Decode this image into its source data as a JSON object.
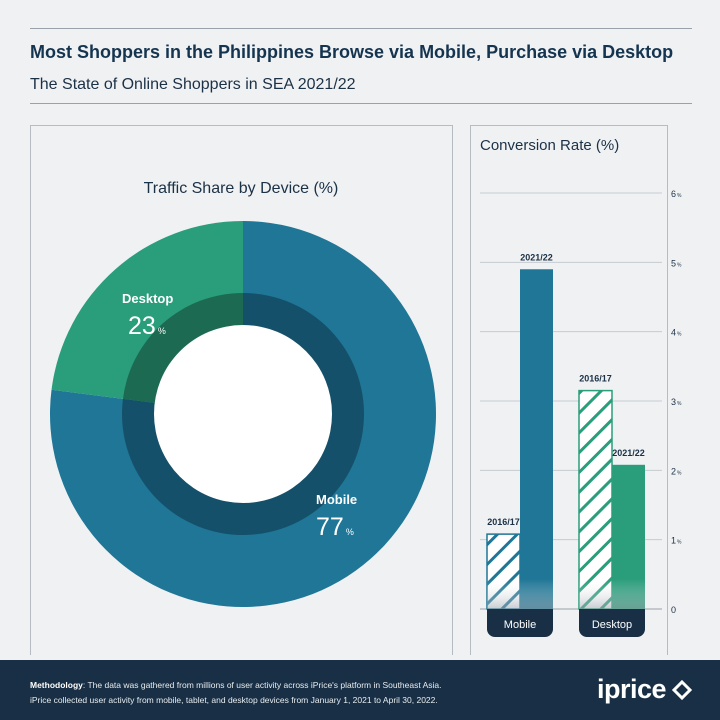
{
  "header": {
    "title": "Most Shoppers in the Philippines Browse via Mobile, Purchase via Desktop",
    "subtitle": "The State of Online Shoppers in SEA 2021/22"
  },
  "colors": {
    "mobile": "#1f7696",
    "desktop": "#2a9d7b",
    "navy": "#182f45",
    "inner_ring": "#15506a",
    "inner_ring_desktop": "#1c6a52"
  },
  "chart_data": [
    {
      "type": "pie",
      "title": "Traffic Share by Device (%)",
      "categories": [
        "Mobile",
        "Desktop"
      ],
      "values": [
        77,
        23
      ],
      "value_labels": [
        "77",
        "23"
      ],
      "unit": "%",
      "donut": true
    },
    {
      "type": "bar",
      "title": "Conversion Rate (%)",
      "categories": [
        "Mobile",
        "Desktop"
      ],
      "series": [
        {
          "name": "2016/17",
          "values": [
            1.08,
            3.15
          ],
          "pattern": "hatched"
        },
        {
          "name": "2021/22",
          "values": [
            4.9,
            2.08
          ],
          "pattern": "solid"
        }
      ],
      "ylim": [
        0,
        6
      ],
      "yticks": [
        {
          "value": 0,
          "label": "0",
          "unit": ""
        },
        {
          "value": 1,
          "label": "1",
          "unit": "%"
        },
        {
          "value": 2,
          "label": "2",
          "unit": "%"
        },
        {
          "value": 3,
          "label": "3",
          "unit": "%"
        },
        {
          "value": 4,
          "label": "4",
          "unit": "%"
        },
        {
          "value": 5,
          "label": "5",
          "unit": "%"
        },
        {
          "value": 6,
          "label": "6",
          "unit": "%"
        }
      ],
      "grid": true,
      "axis_position": "right"
    }
  ],
  "footer": {
    "methodology_label": "Methodology",
    "methodology_line1": ": The data was gathered from millions of user activity across iPrice's platform in Southeast Asia.",
    "methodology_line2": "iPrice collected user activity from mobile, tablet, and desktop devices from January 1, 2021 to April 30, 2022.",
    "logo_text": "iprice"
  }
}
